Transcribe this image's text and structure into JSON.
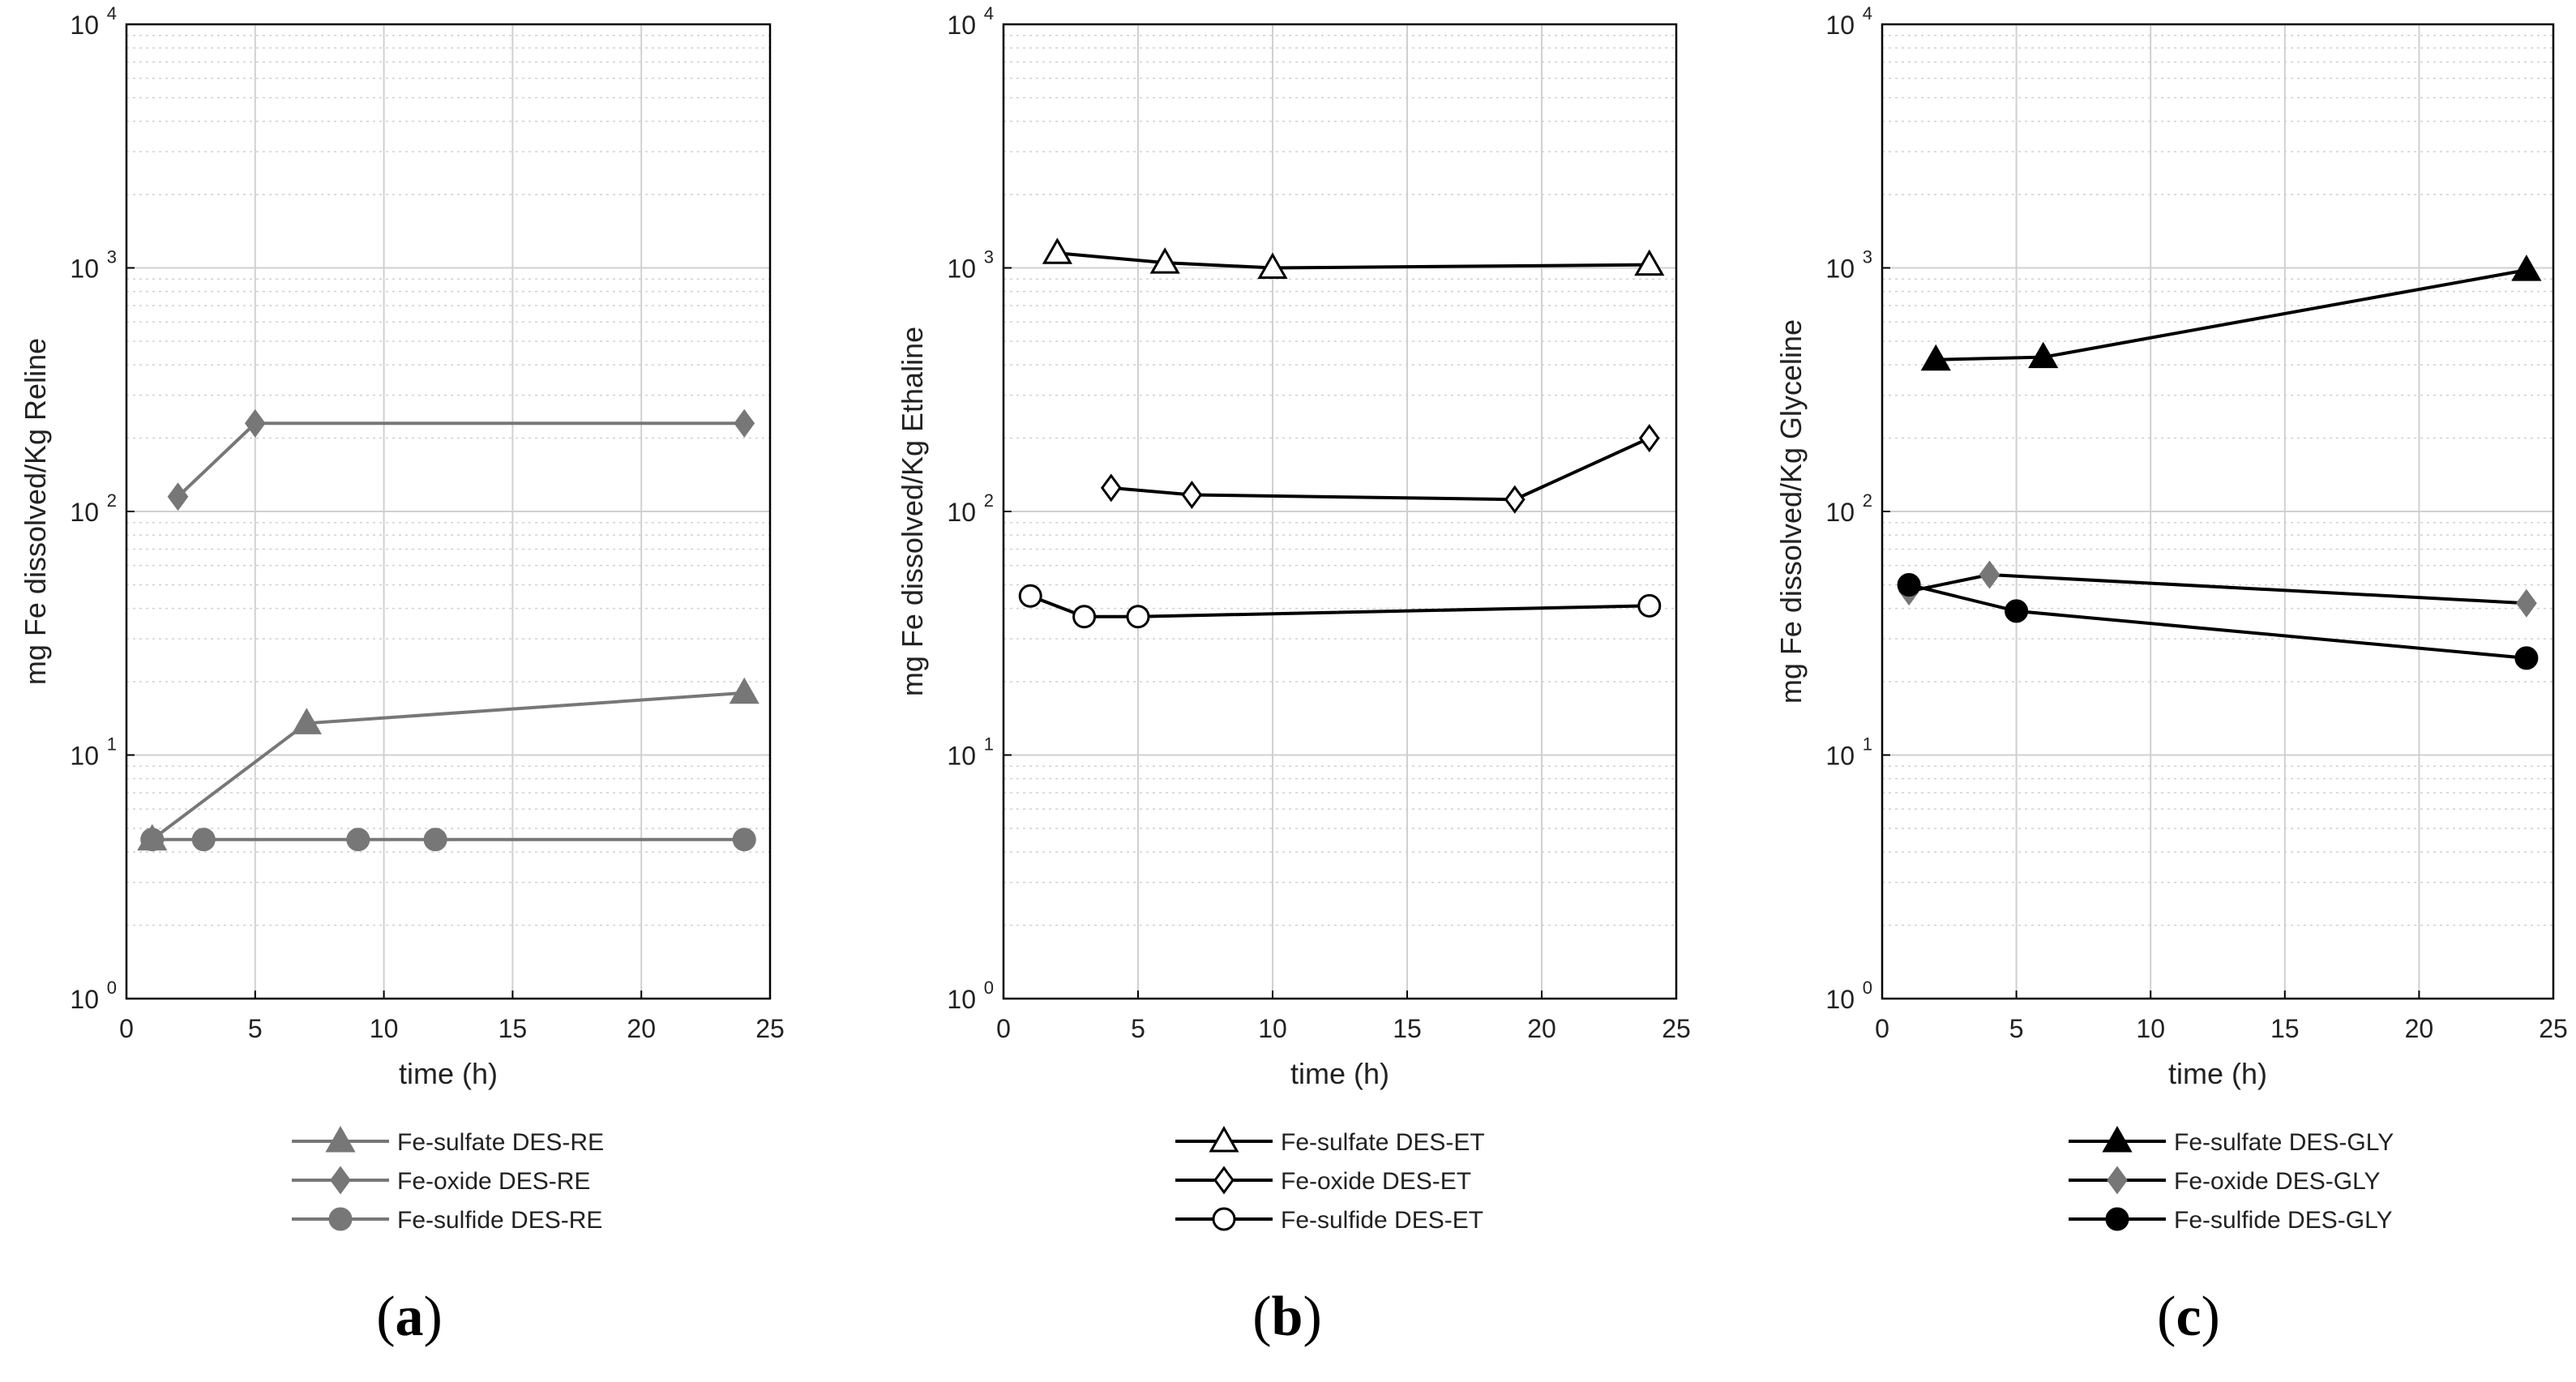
{
  "colors": {
    "background": "#ffffff",
    "grid": "#d0d0d0",
    "axis": "#000000",
    "gray_series": "#777777",
    "black_series": "#000000"
  },
  "chart_data": [
    {
      "type": "line",
      "panel_label": "a",
      "xlabel": "time (h)",
      "ylabel": "mg Fe dissolved/Kg Reline",
      "xlim": [
        0,
        25
      ],
      "ylim": [
        1,
        10000
      ],
      "yscale": "log",
      "xticks": [
        0,
        5,
        10,
        15,
        20,
        25
      ],
      "yticks": [
        {
          "mant": "10",
          "exp": "0",
          "value": 1
        },
        {
          "mant": "10",
          "exp": "1",
          "value": 10
        },
        {
          "mant": "10",
          "exp": "2",
          "value": 100
        },
        {
          "mant": "10",
          "exp": "3",
          "value": 1000
        },
        {
          "mant": "10",
          "exp": "4",
          "value": 10000
        }
      ],
      "grid": true,
      "legend_position": "below",
      "series": [
        {
          "name": "Fe-sulfate DES-RE",
          "marker": "triangle",
          "fill": "gray",
          "points": [
            [
              1,
              4.5
            ],
            [
              7,
              13.5
            ],
            [
              24,
              18
            ]
          ]
        },
        {
          "name": "Fe-oxide DES-RE",
          "marker": "diamond",
          "fill": "gray",
          "points": [
            [
              2,
              115
            ],
            [
              5,
              230
            ],
            [
              24,
              230
            ]
          ]
        },
        {
          "name": "Fe-sulfide DES-RE",
          "marker": "circle",
          "fill": "gray",
          "points": [
            [
              1,
              4.5
            ],
            [
              3,
              4.5
            ],
            [
              9,
              4.5
            ],
            [
              12,
              4.5
            ],
            [
              24,
              4.5
            ]
          ]
        }
      ]
    },
    {
      "type": "line",
      "panel_label": "b",
      "xlabel": "time (h)",
      "ylabel": "mg Fe dissolved/Kg Ethaline",
      "xlim": [
        0,
        25
      ],
      "ylim": [
        1,
        10000
      ],
      "yscale": "log",
      "xticks": [
        0,
        5,
        10,
        15,
        20,
        25
      ],
      "yticks": [
        {
          "mant": "10",
          "exp": "0",
          "value": 1
        },
        {
          "mant": "10",
          "exp": "1",
          "value": 10
        },
        {
          "mant": "10",
          "exp": "2",
          "value": 100
        },
        {
          "mant": "10",
          "exp": "3",
          "value": 1000
        },
        {
          "mant": "10",
          "exp": "4",
          "value": 10000
        }
      ],
      "grid": true,
      "legend_position": "below",
      "series": [
        {
          "name": "Fe-sulfate DES-ET",
          "marker": "triangle",
          "fill": "open",
          "points": [
            [
              2,
              1150
            ],
            [
              6,
              1050
            ],
            [
              10,
              1000
            ],
            [
              24,
              1030
            ]
          ]
        },
        {
          "name": "Fe-oxide DES-ET",
          "marker": "diamond",
          "fill": "open",
          "points": [
            [
              4,
              125
            ],
            [
              7,
              117
            ],
            [
              19,
              112
            ],
            [
              24,
              200
            ]
          ]
        },
        {
          "name": "Fe-sulfide DES-ET",
          "marker": "circle",
          "fill": "open",
          "points": [
            [
              1,
              45
            ],
            [
              3,
              37
            ],
            [
              5,
              37
            ],
            [
              24,
              41
            ]
          ]
        }
      ]
    },
    {
      "type": "line",
      "panel_label": "c",
      "xlabel": "time (h)",
      "ylabel": "mg Fe dissolved/Kg Glyceline",
      "xlim": [
        0,
        25
      ],
      "ylim": [
        1,
        10000
      ],
      "yscale": "log",
      "xticks": [
        0,
        5,
        10,
        15,
        20,
        25
      ],
      "yticks": [
        {
          "mant": "10",
          "exp": "0",
          "value": 1
        },
        {
          "mant": "10",
          "exp": "1",
          "value": 10
        },
        {
          "mant": "10",
          "exp": "2",
          "value": 100
        },
        {
          "mant": "10",
          "exp": "3",
          "value": 1000
        },
        {
          "mant": "10",
          "exp": "4",
          "value": 10000
        }
      ],
      "grid": true,
      "legend_position": "below",
      "series": [
        {
          "name": "Fe-sulfate DES-GLY",
          "marker": "triangle",
          "fill": "black",
          "points": [
            [
              2,
              420
            ],
            [
              6,
              430
            ],
            [
              24,
              980
            ]
          ]
        },
        {
          "name": "Fe-oxide DES-GLY",
          "marker": "diamond",
          "fill": "gray",
          "points": [
            [
              1,
              47
            ],
            [
              4,
              55
            ],
            [
              24,
              42
            ]
          ]
        },
        {
          "name": "Fe-sulfide DES-GLY",
          "marker": "circle",
          "fill": "black",
          "points": [
            [
              1,
              50
            ],
            [
              5,
              39
            ],
            [
              24,
              25
            ]
          ]
        }
      ]
    }
  ]
}
